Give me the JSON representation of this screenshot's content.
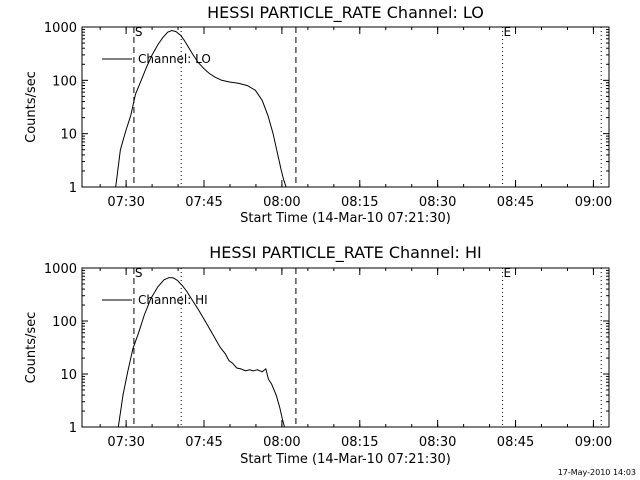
{
  "footer": {
    "timestamp": "17-May-2010 14:03"
  },
  "chart_data": [
    {
      "type": "line",
      "title": "HESSI PARTICLE_RATE Channel: LO",
      "xlabel": "Start Time (14-Mar-10 07:21:30)",
      "ylabel": "Counts/sec",
      "yscale": "log",
      "ylim": [
        1,
        1000
      ],
      "yticks": [
        1,
        10,
        100,
        1000
      ],
      "ytick_labels": [
        "1",
        "10",
        "100",
        "1000"
      ],
      "xlim_minutes": [
        0,
        101.5
      ],
      "xticks_minutes": [
        8.5,
        23.5,
        38.5,
        53.5,
        68.5,
        83.5,
        98.5
      ],
      "xtick_labels": [
        "07:30",
        "07:45",
        "08:00",
        "08:15",
        "08:30",
        "08:45",
        "09:00"
      ],
      "legend": {
        "label": "Channel: LO",
        "position": "top-left"
      },
      "markers": [
        {
          "x": 10.0,
          "style": "dashed",
          "label": "S"
        },
        {
          "x": 19.1,
          "style": "dotted",
          "label": ""
        },
        {
          "x": 41.2,
          "style": "dashed",
          "label": ""
        },
        {
          "x": 81.0,
          "style": "dotted",
          "label": "E"
        },
        {
          "x": 100.0,
          "style": "dotted",
          "label": ""
        }
      ],
      "series": [
        {
          "name": "Channel: LO",
          "x": [
            6.5,
            7.4,
            8.4,
            9.4,
            10.3,
            11.4,
            12.4,
            13.5,
            14.7,
            15.6,
            16.5,
            17.3,
            18.1,
            19.0,
            19.7,
            20.5,
            21.4,
            22.4,
            23.5,
            24.5,
            25.6,
            26.9,
            28.4,
            30.1,
            31.8,
            33.4,
            34.7,
            35.8,
            36.8,
            37.6,
            38.3,
            38.8,
            39.3
          ],
          "y": [
            1,
            5,
            11,
            22,
            55,
            100,
            175,
            300,
            480,
            640,
            800,
            860,
            820,
            700,
            560,
            420,
            300,
            215,
            165,
            135,
            115,
            100,
            93,
            88,
            80,
            65,
            42,
            22,
            10,
            4.5,
            2.2,
            1.4,
            1
          ]
        }
      ]
    },
    {
      "type": "line",
      "title": "HESSI PARTICLE_RATE Channel: HI",
      "xlabel": "Start Time (14-Mar-10 07:21:30)",
      "ylabel": "Counts/sec",
      "yscale": "log",
      "ylim": [
        1,
        1000
      ],
      "yticks": [
        1,
        10,
        100,
        1000
      ],
      "ytick_labels": [
        "1",
        "10",
        "100",
        "1000"
      ],
      "xlim_minutes": [
        0,
        101.5
      ],
      "xticks_minutes": [
        8.5,
        23.5,
        38.5,
        53.5,
        68.5,
        83.5,
        98.5
      ],
      "xtick_labels": [
        "07:30",
        "07:45",
        "08:00",
        "08:15",
        "08:30",
        "08:45",
        "09:00"
      ],
      "legend": {
        "label": "Channel: HI",
        "position": "top-left"
      },
      "markers": [
        {
          "x": 10.0,
          "style": "dashed",
          "label": "S"
        },
        {
          "x": 19.1,
          "style": "dotted",
          "label": ""
        },
        {
          "x": 41.2,
          "style": "dashed",
          "label": ""
        },
        {
          "x": 81.0,
          "style": "dotted",
          "label": "E"
        },
        {
          "x": 100.0,
          "style": "dotted",
          "label": ""
        }
      ],
      "series": [
        {
          "name": "Channel: HI",
          "x": [
            7.0,
            7.9,
            8.8,
            9.8,
            10.9,
            12.0,
            13.3,
            14.6,
            15.8,
            16.8,
            17.6,
            18.4,
            19.3,
            20.2,
            21.2,
            22.4,
            23.7,
            25.1,
            26.6,
            27.6,
            28.3,
            29.0,
            29.8,
            30.6,
            31.5,
            32.3,
            33.0,
            33.8,
            34.7,
            35.4,
            35.9,
            36.5,
            37.4,
            38.1,
            38.6,
            39.0
          ],
          "y": [
            1,
            4,
            11,
            30,
            60,
            130,
            270,
            440,
            600,
            660,
            650,
            580,
            470,
            360,
            250,
            165,
            100,
            58,
            32,
            24,
            18,
            16,
            13,
            12.5,
            11.5,
            12,
            11.5,
            12,
            11,
            12.5,
            8,
            6.5,
            4,
            2.3,
            1.4,
            1
          ]
        }
      ]
    }
  ]
}
